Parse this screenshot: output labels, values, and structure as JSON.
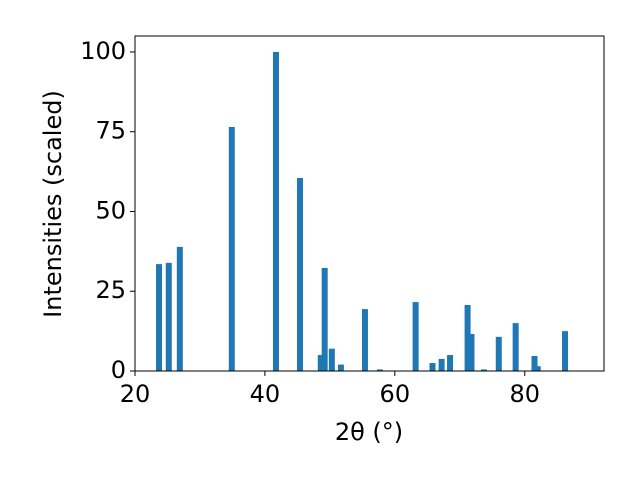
{
  "chart_data": {
    "type": "bar",
    "x_label": "2θ (°)",
    "y_label": "Intensities (scaled)",
    "x": [
      23.7,
      25.2,
      26.9,
      34.9,
      41.7,
      45.4,
      48.6,
      49.2,
      50.3,
      51.7,
      55.4,
      57.7,
      63.2,
      65.8,
      67.2,
      68.5,
      71.2,
      71.8,
      73.7,
      76.0,
      78.6,
      81.5,
      82.0,
      86.2
    ],
    "values": [
      33.5,
      33.9,
      38.9,
      76.5,
      100,
      60.5,
      5,
      32.3,
      7,
      2,
      19.4,
      0.5,
      21.6,
      2.5,
      3.8,
      5,
      20.7,
      11.6,
      0.5,
      10.7,
      15,
      4.7,
      1.5,
      12.5
    ],
    "color": "#1f77b4",
    "xlim": [
      20,
      92.2
    ],
    "xticks": [
      20,
      40,
      60,
      80
    ],
    "ylim": [
      0,
      105
    ],
    "yticks": [
      0,
      25,
      50,
      75,
      100
    ]
  }
}
